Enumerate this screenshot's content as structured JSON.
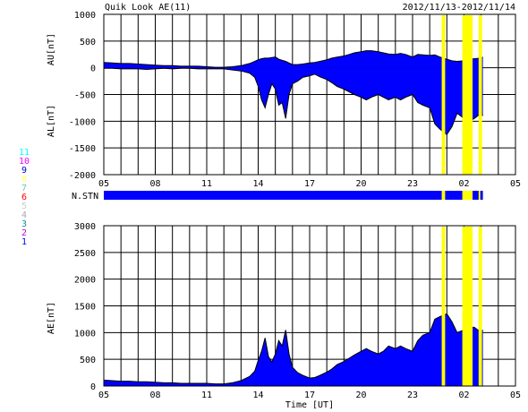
{
  "header": {
    "title": "Quik Look AE(11)",
    "date_range": "2012/11/13-2012/11/14"
  },
  "colors": {
    "fill": "#0000ff",
    "flag": "#ffff00",
    "outline": "#000000",
    "grid": "#000000"
  },
  "station_legend": [
    {
      "label": "11",
      "color": "#00ffff"
    },
    {
      "label": "10",
      "color": "#ff00ff"
    },
    {
      "label": "9",
      "color": "#0000cc"
    },
    {
      "label": "8",
      "color": "#ffff66"
    },
    {
      "label": "7",
      "color": "#66ccaa"
    },
    {
      "label": "6",
      "color": "#ff0000"
    },
    {
      "label": "5",
      "color": "#cccccc"
    },
    {
      "label": "4",
      "color": "#aaaaaa"
    },
    {
      "label": "3",
      "color": "#009999"
    },
    {
      "label": "2",
      "color": "#cc00cc"
    },
    {
      "label": "1",
      "color": "#0000ff"
    }
  ],
  "chart_data": [
    {
      "type": "area",
      "name": "AU/AL",
      "ylabel_upper": "AU[nT]",
      "ylabel_lower": "AL[nT]",
      "ylim": [
        -2000,
        1000
      ],
      "yticks": [
        1000,
        500,
        0,
        -500,
        -1000,
        -1500,
        -2000
      ],
      "xticks": [
        "05",
        "08",
        "11",
        "14",
        "17",
        "20",
        "23",
        "02",
        "05"
      ],
      "xlim_hours": [
        5,
        29
      ],
      "grid": true,
      "x_hours": [
        5.0,
        5.5,
        6.0,
        6.5,
        7.0,
        7.5,
        8.0,
        8.5,
        9.0,
        9.5,
        10.0,
        10.5,
        11.0,
        11.5,
        12.0,
        12.5,
        13.0,
        13.5,
        13.8,
        14.0,
        14.2,
        14.4,
        14.6,
        14.8,
        15.0,
        15.2,
        15.4,
        15.6,
        15.8,
        16.0,
        16.3,
        16.6,
        17.0,
        17.3,
        17.6,
        18.0,
        18.3,
        18.6,
        19.0,
        19.3,
        19.6,
        20.0,
        20.3,
        20.6,
        21.0,
        21.3,
        21.6,
        22.0,
        22.3,
        22.6,
        23.0,
        23.3,
        23.6,
        24.0,
        24.3,
        24.6,
        25.0,
        25.3,
        25.6,
        26.0,
        26.3,
        26.6,
        27.0,
        27.1
      ],
      "au": [
        100,
        90,
        80,
        80,
        70,
        60,
        50,
        40,
        40,
        30,
        30,
        30,
        20,
        10,
        10,
        20,
        40,
        80,
        120,
        150,
        170,
        180,
        180,
        190,
        200,
        160,
        140,
        120,
        90,
        60,
        60,
        70,
        90,
        100,
        120,
        150,
        180,
        200,
        220,
        250,
        280,
        300,
        320,
        320,
        300,
        280,
        260,
        250,
        270,
        250,
        200,
        250,
        240,
        230,
        240,
        200,
        160,
        130,
        120,
        130,
        160,
        170,
        180,
        200
      ],
      "al": [
        -10,
        -10,
        -20,
        -20,
        -20,
        -30,
        -20,
        -10,
        -20,
        -10,
        -10,
        -20,
        -20,
        -20,
        -20,
        -40,
        -60,
        -100,
        -180,
        -350,
        -600,
        -750,
        -500,
        -300,
        -400,
        -700,
        -650,
        -950,
        -500,
        -300,
        -250,
        -180,
        -150,
        -120,
        -170,
        -220,
        -280,
        -350,
        -400,
        -450,
        -500,
        -550,
        -600,
        -550,
        -500,
        -550,
        -600,
        -550,
        -600,
        -550,
        -500,
        -650,
        -700,
        -750,
        -1050,
        -1150,
        -1250,
        -1100,
        -850,
        -950,
        -1000,
        -950,
        -850,
        -900
      ]
    },
    {
      "type": "area",
      "name": "AE",
      "ylabel": "AE[nT]",
      "xlabel": "Time [UT]",
      "ylim": [
        0,
        3000
      ],
      "yticks": [
        3000,
        2500,
        2000,
        1500,
        1000,
        500,
        0
      ],
      "xticks": [
        "05",
        "08",
        "11",
        "14",
        "17",
        "20",
        "23",
        "02",
        "05"
      ],
      "xlim_hours": [
        5,
        29
      ],
      "grid": true,
      "x_hours": [
        5.0,
        5.5,
        6.0,
        6.5,
        7.0,
        7.5,
        8.0,
        8.5,
        9.0,
        9.5,
        10.0,
        10.5,
        11.0,
        11.5,
        12.0,
        12.5,
        13.0,
        13.5,
        13.8,
        14.0,
        14.2,
        14.4,
        14.6,
        14.8,
        15.0,
        15.2,
        15.4,
        15.6,
        15.8,
        16.0,
        16.3,
        16.6,
        17.0,
        17.3,
        17.6,
        18.0,
        18.3,
        18.6,
        19.0,
        19.3,
        19.6,
        20.0,
        20.3,
        20.6,
        21.0,
        21.3,
        21.6,
        22.0,
        22.3,
        22.6,
        23.0,
        23.3,
        23.6,
        24.0,
        24.3,
        24.6,
        25.0,
        25.3,
        25.6,
        26.0,
        26.3,
        26.6,
        27.0,
        27.1
      ],
      "ae": [
        110,
        100,
        90,
        90,
        80,
        80,
        70,
        60,
        60,
        50,
        50,
        50,
        50,
        40,
        40,
        60,
        100,
        180,
        280,
        480,
        650,
        900,
        550,
        450,
        600,
        850,
        750,
        1050,
        600,
        350,
        250,
        200,
        150,
        160,
        200,
        260,
        320,
        400,
        460,
        520,
        580,
        650,
        700,
        650,
        600,
        650,
        750,
        700,
        750,
        700,
        650,
        850,
        950,
        1000,
        1250,
        1300,
        1350,
        1200,
        1000,
        1050,
        1100,
        1100,
        1000,
        1050
      ]
    }
  ],
  "flag_bars_hours": [
    [
      24.7,
      24.9
    ],
    [
      25.9,
      26.5
    ],
    [
      26.85,
      27.05
    ]
  ],
  "station_bar": {
    "label": "N.STN",
    "segments_hours": [
      [
        5.0,
        24.7
      ],
      [
        24.9,
        25.9
      ],
      [
        26.5,
        26.85
      ],
      [
        26.95,
        27.1
      ]
    ]
  }
}
